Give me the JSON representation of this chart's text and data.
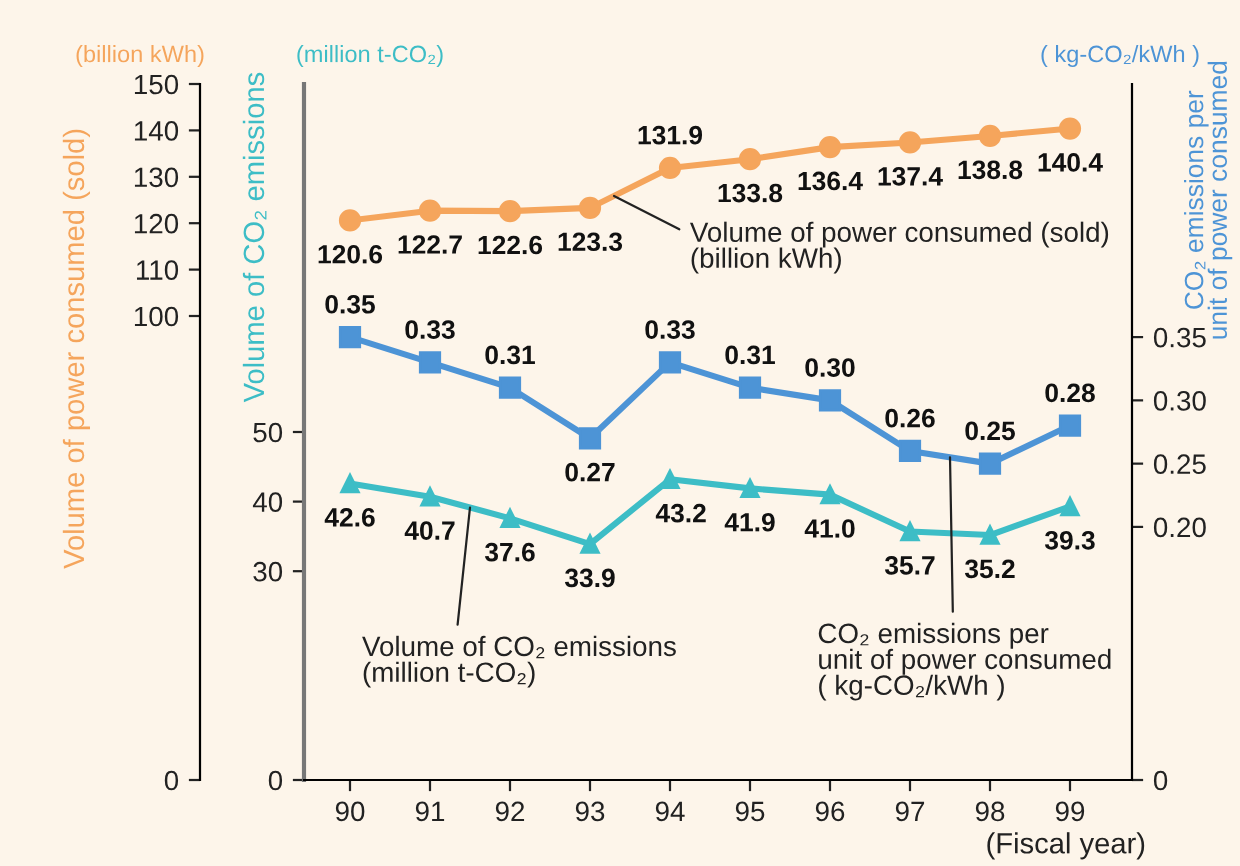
{
  "chart_data": {
    "type": "line",
    "xlabel": "(Fiscal year)",
    "ylabel": "Volume of power consumed (sold)",
    "y3label": "Volume of CO₂ emissions",
    "y2label": "CO₂ emissions per\nunit of power consumed",
    "categories": [
      "90",
      "91",
      "92",
      "93",
      "94",
      "95",
      "96",
      "97",
      "98",
      "99"
    ],
    "series": [
      {
        "name": "Volume of power consumed (sold)\n(billion kWh)",
        "color": "#f5a55c",
        "axis": "y",
        "marker": "circle",
        "values": [
          120.6,
          122.7,
          122.6,
          123.3,
          131.9,
          133.8,
          136.4,
          137.4,
          138.8,
          140.4
        ],
        "value_labels": [
          "120.6",
          "122.7",
          "122.6",
          "123.3",
          "131.9",
          "133.8",
          "136.4",
          "137.4",
          "138.8",
          "140.4"
        ]
      },
      {
        "name": "CO₂ emissions per\nunit of power consumed\n( kg-CO₂/kWh )",
        "color": "#4d94d6",
        "axis": "y2",
        "marker": "square",
        "values": [
          0.35,
          0.33,
          0.31,
          0.27,
          0.33,
          0.31,
          0.3,
          0.26,
          0.25,
          0.28
        ],
        "value_labels": [
          "0.35",
          "0.33",
          "0.31",
          "0.27",
          "0.33",
          "0.31",
          "0.30",
          "0.26",
          "0.25",
          "0.28"
        ]
      },
      {
        "name": "Volume of CO₂ emissions\n(million t-CO₂)",
        "color": "#3dbdc6",
        "axis": "y3",
        "marker": "triangle",
        "values": [
          42.6,
          40.7,
          37.6,
          33.9,
          43.2,
          41.9,
          41.0,
          35.7,
          35.2,
          39.3
        ],
        "value_labels": [
          "42.6",
          "40.7",
          "37.6",
          "33.9",
          "43.2",
          "41.9",
          "41.0",
          "35.7",
          "35.2",
          "39.3"
        ]
      }
    ],
    "ylim": [
      0,
      150
    ],
    "yticks": [
      0,
      100,
      110,
      120,
      130,
      140,
      150
    ],
    "y2lim": [
      0,
      0.55
    ],
    "y2ticks": [
      0,
      {
        "value": 0.2,
        "label": "0.20"
      },
      {
        "value": 0.25,
        "label": "0.25"
      },
      {
        "value": 0.3,
        "label": "0.30"
      },
      {
        "value": 0.35,
        "label": "0.35"
      }
    ],
    "y3lim": [
      0,
      100
    ],
    "y3ticks": [
      0,
      30,
      40,
      50
    ],
    "annotations": [
      "(billion kWh)",
      "( kg-CO₂/kWh )",
      "(million t-CO₂)"
    ],
    "legend": false,
    "grid": false,
    "line_style": "solid"
  }
}
